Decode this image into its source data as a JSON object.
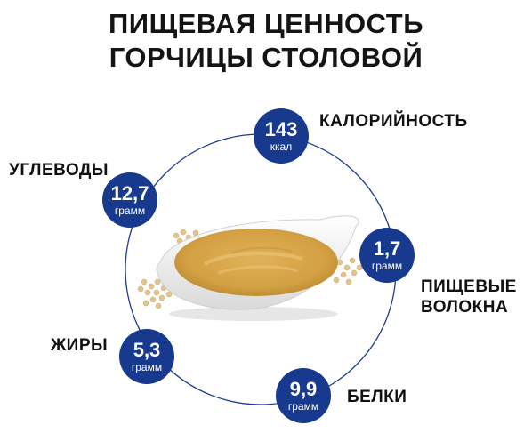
{
  "title": {
    "line1": "ПИЩЕВАЯ ЦЕННОСТЬ",
    "line2": "ГОРЧИЦЫ СТОЛОВОЙ"
  },
  "colors": {
    "badge": "#173a8e",
    "ring": "#1c3d8f",
    "mustard": "#d9a94b",
    "text": "#111111"
  },
  "nutrients": {
    "calories": {
      "value": "143",
      "unit": "ккал",
      "label": "КАЛОРИЙНОСТЬ"
    },
    "carbs": {
      "value": "12,7",
      "unit": "грамм",
      "label": "УГЛЕВОДЫ"
    },
    "fiber": {
      "value": "1,7",
      "unit": "грамм",
      "label_line1": "ПИЩЕВЫЕ",
      "label_line2": "ВОЛОКНА"
    },
    "fats": {
      "value": "5,3",
      "unit": "грамм",
      "label": "ЖИРЫ"
    },
    "protein": {
      "value": "9,9",
      "unit": "грамм",
      "label": "БЕЛКИ"
    }
  },
  "image": {
    "icon": "mustard-bowl-illustration"
  }
}
